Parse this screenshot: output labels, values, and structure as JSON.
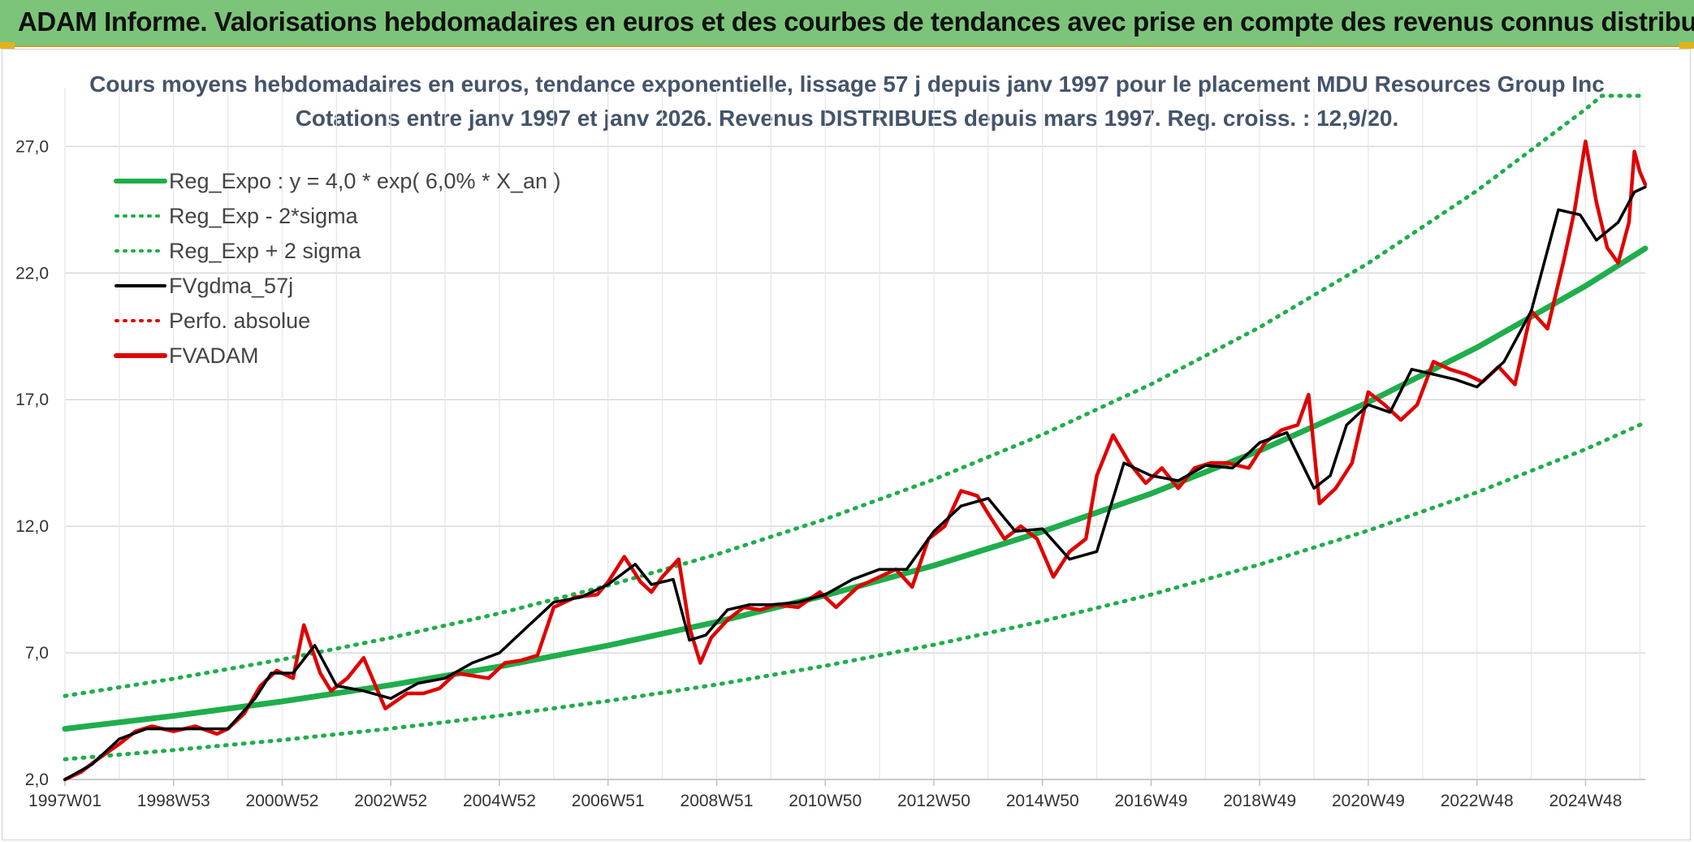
{
  "banner": {
    "title": "ADAM Informe. Valorisations hebdomadaires en euros et des courbes de tendances avec prise en compte des revenus connus distribués"
  },
  "chart_data": {
    "type": "line",
    "title": "Cours moyens hebdomadaires en euros, tendance exponentielle, lissage 57 j depuis janv 1997 pour le placement MDU Resources Group Inc",
    "subtitle": "Cotations entre janv 1997 et janv 2026. Revenus DISTRIBUES depuis mars 1997. Reg. croiss. : 12,9/20.",
    "xlabel": "",
    "ylabel": "",
    "ylim": [
      2.0,
      29.0
    ],
    "xlim": [
      1997.0,
      2026.1
    ],
    "y_ticks": [
      "2,0",
      "7,0",
      "12,0",
      "17,0",
      "22,0",
      "27,0"
    ],
    "y_tick_values": [
      2,
      7,
      12,
      17,
      22,
      27
    ],
    "x_tick_labels": [
      "1997W01",
      "1998W53",
      "2000W52",
      "2002W52",
      "2004W52",
      "2006W51",
      "2008W51",
      "2010W50",
      "2012W50",
      "2014W50",
      "2016W49",
      "2018W49",
      "2020W49",
      "2022W48",
      "2024W48"
    ],
    "x_tick_years": [
      1997.0,
      1999.0,
      2001.0,
      2003.0,
      2005.0,
      2007.0,
      2009.0,
      2011.0,
      2013.0,
      2015.0,
      2017.0,
      2019.0,
      2021.0,
      2023.0,
      2025.0
    ],
    "legend": [
      {
        "label": "Reg_Expo : y = 4,0 * exp( 6,0% *  X_an )",
        "color": "#1fae4b",
        "style": "solid-thick"
      },
      {
        "label": "Reg_Exp - 2*sigma",
        "color": "#1fae4b",
        "style": "dotted"
      },
      {
        "label": "Reg_Exp + 2 sigma",
        "color": "#1fae4b",
        "style": "dotted"
      },
      {
        "label": "FVgdma_57j",
        "color": "#000000",
        "style": "solid"
      },
      {
        "label": "Perfo. absolue",
        "color": "#e00000",
        "style": "dotted"
      },
      {
        "label": "FVADAM",
        "color": "#e00000",
        "style": "solid-thick"
      }
    ],
    "series": [
      {
        "name": "Reg_Expo",
        "model": "4.0*exp(0.06*t)",
        "color": "#1fae4b",
        "x": [
          1997,
          1999,
          2001,
          2003,
          2005,
          2007,
          2009,
          2011,
          2013,
          2015,
          2017,
          2019,
          2021,
          2023,
          2025,
          2026.1
        ],
        "values": [
          4.0,
          4.51,
          5.08,
          5.73,
          6.46,
          7.29,
          8.22,
          9.27,
          10.45,
          11.79,
          13.29,
          14.99,
          16.9,
          19.06,
          21.49,
          22.97
        ]
      },
      {
        "name": "Reg_Exp - 2*sigma",
        "color": "#1fae4b",
        "x": [
          1997,
          1999,
          2001,
          2003,
          2005,
          2007,
          2009,
          2011,
          2013,
          2015,
          2017,
          2019,
          2021,
          2023,
          2025,
          2026.1
        ],
        "values": [
          2.8,
          3.16,
          3.56,
          4.01,
          4.52,
          5.1,
          5.75,
          6.49,
          7.32,
          8.25,
          9.3,
          10.49,
          11.83,
          13.34,
          15.04,
          16.1
        ]
      },
      {
        "name": "Reg_Exp + 2 sigma",
        "color": "#1fae4b",
        "x": [
          1997,
          1999,
          2001,
          2003,
          2005,
          2007,
          2009,
          2011,
          2013,
          2015,
          2017,
          2019,
          2021,
          2023,
          2025,
          2025.3,
          2026.1
        ],
        "values": [
          5.3,
          5.98,
          6.74,
          7.6,
          8.56,
          9.66,
          10.89,
          12.28,
          13.85,
          15.62,
          17.61,
          19.86,
          22.39,
          25.25,
          28.47,
          29.0,
          29.0
        ]
      },
      {
        "name": "FVgdma_57j",
        "color": "#000000",
        "x": [
          1997.0,
          1997.5,
          1998.0,
          1998.5,
          1999.0,
          1999.5,
          2000.0,
          2000.5,
          2000.8,
          2001.2,
          2001.6,
          2002.0,
          2002.5,
          2003.0,
          2003.5,
          2004.0,
          2004.5,
          2005.0,
          2005.5,
          2006.0,
          2006.5,
          2007.0,
          2007.5,
          2007.8,
          2008.2,
          2008.5,
          2008.8,
          2009.2,
          2009.6,
          2010.0,
          2010.5,
          2011.0,
          2011.5,
          2012.0,
          2012.5,
          2013.0,
          2013.5,
          2014.0,
          2014.5,
          2015.0,
          2015.5,
          2016.0,
          2016.5,
          2017.0,
          2017.5,
          2018.0,
          2018.5,
          2019.0,
          2019.5,
          2020.0,
          2020.3,
          2020.6,
          2021.0,
          2021.4,
          2021.8,
          2022.2,
          2022.6,
          2023.0,
          2023.5,
          2024.0,
          2024.5,
          2024.9,
          2025.2,
          2025.6,
          2025.9,
          2026.1
        ],
        "values": [
          2.0,
          2.6,
          3.6,
          4.0,
          4.0,
          4.0,
          4.0,
          5.2,
          6.2,
          6.2,
          7.3,
          5.7,
          5.5,
          5.2,
          5.8,
          6.0,
          6.6,
          7.0,
          8.0,
          9.0,
          9.2,
          9.7,
          10.5,
          9.7,
          9.9,
          7.5,
          7.7,
          8.7,
          8.9,
          8.9,
          9.0,
          9.3,
          9.9,
          10.3,
          10.3,
          11.8,
          12.8,
          13.1,
          11.8,
          11.9,
          10.7,
          11.0,
          14.5,
          14.0,
          13.8,
          14.4,
          14.3,
          15.3,
          15.7,
          13.5,
          14.0,
          16.0,
          16.8,
          16.5,
          18.2,
          18.0,
          17.8,
          17.5,
          18.5,
          20.5,
          24.5,
          24.3,
          23.3,
          24.0,
          25.2,
          25.4
        ]
      },
      {
        "name": "FVADAM",
        "color": "#e00000",
        "x": [
          1997.0,
          1997.3,
          1997.6,
          1998.0,
          1998.3,
          1998.6,
          1999.0,
          1999.4,
          1999.8,
          2000.0,
          2000.3,
          2000.6,
          2000.9,
          2001.2,
          2001.4,
          2001.7,
          2001.9,
          2002.2,
          2002.5,
          2002.9,
          2003.3,
          2003.6,
          2003.9,
          2004.2,
          2004.5,
          2004.8,
          2005.1,
          2005.4,
          2005.7,
          2006.0,
          2006.4,
          2006.8,
          2007.0,
          2007.3,
          2007.6,
          2007.8,
          2008.0,
          2008.3,
          2008.5,
          2008.7,
          2008.9,
          2009.2,
          2009.5,
          2009.8,
          2010.1,
          2010.5,
          2010.9,
          2011.2,
          2011.6,
          2012.0,
          2012.3,
          2012.6,
          2012.9,
          2013.2,
          2013.5,
          2013.8,
          2014.0,
          2014.3,
          2014.6,
          2014.9,
          2015.2,
          2015.5,
          2015.8,
          2016.0,
          2016.3,
          2016.6,
          2016.9,
          2017.2,
          2017.5,
          2017.8,
          2018.1,
          2018.4,
          2018.8,
          2019.1,
          2019.4,
          2019.7,
          2019.9,
          2020.1,
          2020.4,
          2020.7,
          2021.0,
          2021.3,
          2021.6,
          2021.9,
          2022.2,
          2022.5,
          2022.8,
          2023.1,
          2023.4,
          2023.7,
          2024.0,
          2024.3,
          2024.6,
          2024.8,
          2025.0,
          2025.2,
          2025.4,
          2025.6,
          2025.8,
          2025.9,
          2026.0,
          2026.1
        ],
        "values": [
          2.0,
          2.3,
          2.8,
          3.4,
          3.9,
          4.1,
          3.9,
          4.1,
          3.8,
          4.0,
          4.6,
          5.7,
          6.3,
          6.0,
          8.1,
          6.2,
          5.5,
          6.0,
          6.8,
          4.8,
          5.4,
          5.4,
          5.6,
          6.2,
          6.1,
          6.0,
          6.6,
          6.7,
          6.9,
          8.8,
          9.2,
          9.3,
          9.8,
          10.8,
          9.8,
          9.4,
          10.0,
          10.7,
          8.0,
          6.6,
          7.6,
          8.3,
          8.8,
          8.7,
          8.9,
          8.8,
          9.4,
          8.8,
          9.6,
          10.0,
          10.3,
          9.6,
          11.5,
          12.0,
          13.4,
          13.2,
          12.5,
          11.5,
          12.0,
          11.5,
          10.0,
          11.0,
          11.5,
          14.0,
          15.6,
          14.5,
          13.7,
          14.3,
          13.5,
          14.3,
          14.5,
          14.5,
          14.3,
          15.3,
          15.8,
          16.0,
          17.2,
          12.9,
          13.5,
          14.5,
          17.3,
          16.8,
          16.2,
          16.8,
          18.5,
          18.2,
          18.0,
          17.7,
          18.3,
          17.6,
          20.5,
          19.8,
          22.5,
          24.5,
          27.2,
          24.8,
          23.0,
          22.4,
          24.0,
          26.8,
          26.0,
          25.5
        ]
      }
    ]
  }
}
